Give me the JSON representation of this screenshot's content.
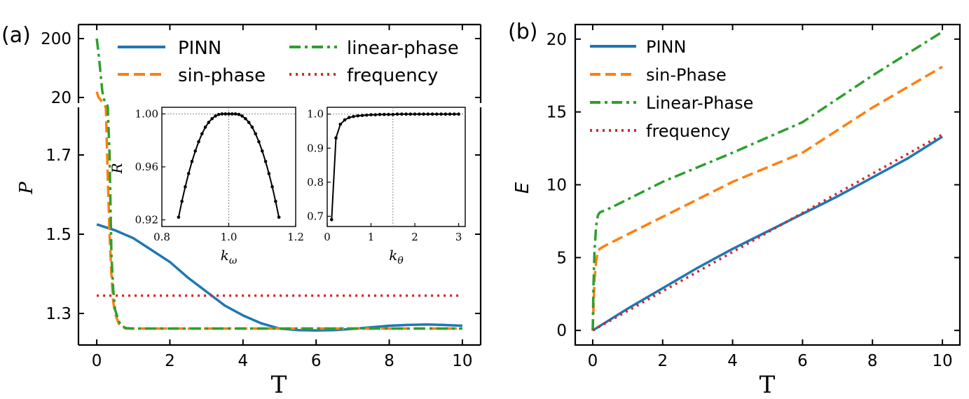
{
  "colors": {
    "pinn": "#1f77b4",
    "sin": "#ff7f0e",
    "linear": "#2ca02c",
    "freq": "#d62728"
  },
  "chart_data": [
    {
      "id": "a",
      "type": "line",
      "panel_label": "(a)",
      "xlabel": "T",
      "ylabel": "P",
      "xlim": [
        -0.5,
        10.5
      ],
      "x_ticks": [
        "0",
        "2",
        "4",
        "6",
        "8",
        "10"
      ],
      "y_break": true,
      "y_ticks_lower": [
        "1.3",
        "1.5",
        "1.7"
      ],
      "y_ticks_upper": [
        "20",
        "200"
      ],
      "legend": {
        "placement": "top",
        "entries": [
          {
            "name": "PINN",
            "style": "solid"
          },
          {
            "name": "sin-phase",
            "style": "dashed"
          },
          {
            "name": "linear-phase",
            "style": "dashdot"
          },
          {
            "name": "frequency",
            "style": "dotted"
          }
        ]
      },
      "series": [
        {
          "name": "PINN",
          "style": "solid",
          "x": [
            0,
            0.5,
            1,
            1.5,
            2,
            2.5,
            3,
            3.5,
            4,
            4.5,
            5,
            5.5,
            6,
            6.5,
            7,
            7.5,
            8,
            8.5,
            9,
            9.5,
            10
          ],
          "y": [
            1.525,
            1.51,
            1.49,
            1.46,
            1.43,
            1.39,
            1.355,
            1.32,
            1.295,
            1.275,
            1.262,
            1.258,
            1.257,
            1.258,
            1.261,
            1.265,
            1.269,
            1.271,
            1.272,
            1.271,
            1.269
          ]
        },
        {
          "name": "sin-phase",
          "style": "dashed",
          "x": [
            0,
            0.05,
            0.1,
            0.15,
            0.2,
            0.25,
            0.3,
            0.35,
            0.4,
            0.45,
            0.5,
            0.6,
            0.7,
            0.8,
            1,
            2,
            4,
            6,
            8,
            10
          ],
          "y": [
            25,
            20,
            12,
            6,
            2.8,
            1.9,
            1.65,
            1.5,
            1.4,
            1.33,
            1.3,
            1.275,
            1.265,
            1.262,
            1.262,
            1.262,
            1.262,
            1.262,
            1.262,
            1.262
          ]
        },
        {
          "name": "linear-phase",
          "style": "dashdot",
          "x": [
            0,
            0.05,
            0.1,
            0.15,
            0.2,
            0.25,
            0.3,
            0.35,
            0.4,
            0.45,
            0.5,
            0.6,
            0.7,
            0.8,
            1,
            2,
            4,
            6,
            8,
            10
          ],
          "y": [
            200,
            110,
            55,
            26,
            12,
            5,
            2.4,
            1.7,
            1.45,
            1.36,
            1.31,
            1.28,
            1.268,
            1.263,
            1.262,
            1.262,
            1.262,
            1.262,
            1.262,
            1.262
          ]
        },
        {
          "name": "frequency",
          "style": "dotted",
          "x": [
            0,
            10
          ],
          "y": [
            1.345,
            1.345
          ]
        }
      ],
      "insets": [
        {
          "id": "inset-kw",
          "type": "line",
          "xlabel": "k",
          "xlabel_sub": "ω",
          "ylabel": "R",
          "xlim": [
            0.8,
            1.2
          ],
          "ylim": [
            0.915,
            1.005
          ],
          "x_ticks": [
            "0.8",
            "1.0",
            "1.2"
          ],
          "y_ticks": [
            "0.92",
            "0.96",
            "1.00"
          ],
          "ref_x": 1.0,
          "ref_y": 1.0,
          "x": [
            0.85,
            0.86,
            0.87,
            0.88,
            0.89,
            0.9,
            0.91,
            0.92,
            0.93,
            0.94,
            0.95,
            0.96,
            0.97,
            0.98,
            0.99,
            1.0,
            1.01,
            1.02,
            1.03,
            1.04,
            1.05,
            1.06,
            1.07,
            1.08,
            1.09,
            1.1,
            1.11,
            1.12,
            1.13,
            1.14,
            1.15
          ],
          "y": [
            0.922,
            0.934,
            0.945,
            0.955,
            0.9641,
            0.972,
            0.979,
            0.985,
            0.99,
            0.9936,
            0.9964,
            0.9984,
            0.9996,
            1.0,
            1.0,
            1.0,
            1.0,
            1.0,
            0.9996,
            0.9984,
            0.9964,
            0.9936,
            0.99,
            0.985,
            0.979,
            0.972,
            0.9641,
            0.955,
            0.945,
            0.934,
            0.922
          ]
        },
        {
          "id": "inset-kt",
          "type": "line",
          "xlabel": "k",
          "xlabel_sub": "θ",
          "ylabel": "",
          "xlim": [
            0,
            3.15
          ],
          "ylim": [
            0.67,
            1.02
          ],
          "x_ticks": [
            "0",
            "1",
            "2",
            "3"
          ],
          "y_ticks": [
            "0.7",
            "0.8",
            "0.9",
            "1.0"
          ],
          "ref_x": 1.5,
          "ref_y": 1.0,
          "x": [
            0.1,
            0.2,
            0.3,
            0.4,
            0.5,
            0.6,
            0.7,
            0.8,
            0.9,
            1.0,
            1.1,
            1.2,
            1.3,
            1.4,
            1.5,
            1.6,
            1.7,
            1.8,
            1.9,
            2.0,
            2.1,
            2.2,
            2.3,
            2.4,
            2.5,
            2.6,
            2.7,
            2.8,
            2.9,
            3.0
          ],
          "y": [
            0.69,
            0.93,
            0.97,
            0.983,
            0.99,
            0.993,
            0.995,
            0.996,
            0.997,
            0.998,
            0.998,
            0.999,
            0.999,
            0.999,
            0.999,
            1.0,
            1.0,
            1.0,
            1.0,
            1.0,
            1.0,
            1.0,
            1.0,
            1.0,
            1.0,
            1.0,
            1.0,
            1.0,
            1.0,
            1.0
          ]
        }
      ]
    },
    {
      "id": "b",
      "type": "line",
      "panel_label": "(b)",
      "xlabel": "T",
      "ylabel": "E",
      "xlim": [
        -0.5,
        10.5
      ],
      "ylim": [
        -1,
        21
      ],
      "x_ticks": [
        "0",
        "2",
        "4",
        "6",
        "8",
        "10"
      ],
      "y_ticks": [
        "0",
        "5",
        "10",
        "15",
        "20"
      ],
      "legend": {
        "placement": "upper-left",
        "entries": [
          {
            "name": "PINN",
            "style": "solid"
          },
          {
            "name": "sin-Phase",
            "style": "dashed"
          },
          {
            "name": "Linear-Phase",
            "style": "dashdot"
          },
          {
            "name": "frequency",
            "style": "dotted"
          }
        ]
      },
      "series": [
        {
          "name": "PINN",
          "style": "solid",
          "x": [
            0,
            1,
            2,
            3,
            4,
            5,
            6,
            7,
            8,
            9,
            10
          ],
          "y": [
            0,
            1.5,
            2.9,
            4.3,
            5.6,
            6.8,
            8.0,
            9.2,
            10.5,
            11.8,
            13.3
          ]
        },
        {
          "name": "sin-Phase",
          "style": "dashed",
          "x": [
            0,
            0.02,
            0.05,
            0.1,
            0.15,
            0.2,
            0.3,
            0.5,
            1,
            2,
            4,
            6,
            8,
            10
          ],
          "y": [
            0,
            1.5,
            3.5,
            4.8,
            5.4,
            5.6,
            5.75,
            6.0,
            6.6,
            7.8,
            10.2,
            12.2,
            15.3,
            18.1
          ]
        },
        {
          "name": "Linear-Phase",
          "style": "dashdot",
          "x": [
            0,
            0.02,
            0.05,
            0.1,
            0.15,
            0.2,
            0.3,
            0.5,
            1,
            2,
            4,
            6,
            8,
            10
          ],
          "y": [
            0,
            3,
            5.5,
            7.2,
            7.9,
            8.1,
            8.2,
            8.4,
            9.0,
            10.2,
            12.2,
            14.3,
            17.5,
            20.5
          ]
        },
        {
          "name": "frequency",
          "style": "dotted",
          "x": [
            0,
            10
          ],
          "y": [
            0,
            13.45
          ]
        }
      ]
    }
  ]
}
